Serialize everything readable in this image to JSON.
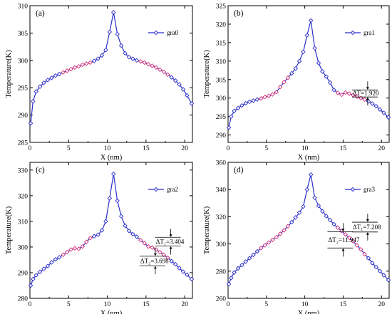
{
  "chart_data": [
    {
      "type": "line",
      "panel_label": "(a)",
      "xlabel": "X (nm)",
      "ylabel": "Temperature(K)",
      "xlim": [
        0,
        21
      ],
      "ylim": [
        285,
        310
      ],
      "xticks": [
        0,
        5,
        10,
        15,
        20
      ],
      "yticks": [
        285,
        290,
        295,
        300,
        305,
        310
      ],
      "legend_position": "top-right",
      "series": [
        {
          "name": "gra0",
          "color": "#2b2fc9",
          "marker": "diamond-open",
          "highlight_color": "#d2307a",
          "x": [
            0.1,
            0.4,
            0.8,
            1.3,
            1.8,
            2.3,
            2.8,
            3.3,
            3.8,
            4.3,
            4.8,
            5.3,
            5.8,
            6.3,
            6.8,
            7.3,
            7.8,
            8.3,
            8.8,
            9.3,
            9.8,
            10.3,
            10.8,
            11.3,
            11.8,
            12.3,
            12.8,
            13.3,
            13.8,
            14.3,
            14.8,
            15.3,
            15.8,
            16.3,
            16.8,
            17.3,
            17.8,
            18.3,
            18.8,
            19.3,
            19.8,
            20.3,
            20.9
          ],
          "y": [
            288.5,
            292.5,
            294.3,
            295.2,
            295.9,
            296.4,
            296.8,
            297.2,
            297.5,
            297.8,
            298.1,
            298.4,
            298.7,
            298.9,
            299.2,
            299.4,
            299.6,
            299.9,
            300.3,
            300.9,
            301.9,
            305.2,
            308.8,
            304.8,
            302.7,
            301.3,
            300.6,
            300.3,
            300.0,
            299.8,
            299.6,
            299.3,
            299.0,
            298.7,
            298.3,
            297.9,
            297.4,
            296.9,
            296.3,
            295.6,
            294.7,
            293.6,
            292.1
          ],
          "highlight_x_ranges": [
            [
              4,
              8
            ],
            [
              14,
              18
            ]
          ]
        }
      ],
      "annotations": []
    },
    {
      "type": "line",
      "panel_label": "(b)",
      "xlabel": "X (nm)",
      "ylabel": "Temperature(K)",
      "xlim": [
        0,
        21
      ],
      "ylim": [
        288,
        325
      ],
      "xticks": [
        0,
        5,
        10,
        15,
        20
      ],
      "yticks": [
        290,
        295,
        300,
        305,
        310,
        315,
        320,
        325
      ],
      "legend_position": "top-right",
      "series": [
        {
          "name": "gra1",
          "color": "#2b2fc9",
          "marker": "diamond-open",
          "highlight_color": "#d2307a",
          "x": [
            0.1,
            0.4,
            0.8,
            1.3,
            1.8,
            2.3,
            2.8,
            3.3,
            3.8,
            4.3,
            4.8,
            5.3,
            5.8,
            6.3,
            6.8,
            7.3,
            7.8,
            8.3,
            8.8,
            9.3,
            9.8,
            10.3,
            10.8,
            11.3,
            11.8,
            12.3,
            12.8,
            13.3,
            13.8,
            14.3,
            14.8,
            15.3,
            15.8,
            16.3,
            16.8,
            17.3,
            17.8,
            18.3,
            18.8,
            19.3,
            19.8,
            20.3,
            20.9
          ],
          "y": [
            292.0,
            295.0,
            296.5,
            297.3,
            298.0,
            298.6,
            299.0,
            299.3,
            299.6,
            299.9,
            300.3,
            300.6,
            301.0,
            301.6,
            303.0,
            304.3,
            305.5,
            306.7,
            308.0,
            310.0,
            312.5,
            317.0,
            321.0,
            313.5,
            309.5,
            307.2,
            305.8,
            304.2,
            302.2,
            301.4,
            300.9,
            301.5,
            301.2,
            300.8,
            300.4,
            300.0,
            299.6,
            299.1,
            298.5,
            297.8,
            296.9,
            296.0,
            294.8
          ],
          "highlight_x_ranges": [
            [
              4,
              8
            ],
            [
              14,
              18
            ]
          ]
        }
      ],
      "annotations": [
        {
          "text": "ΔT=1.920",
          "x": 18.2,
          "y_top": 302.2,
          "y_bottom": 300.3
        }
      ]
    },
    {
      "type": "line",
      "panel_label": "(c)",
      "xlabel": "X (nm)",
      "ylabel": "Temperature(K)",
      "xlim": [
        0,
        21
      ],
      "ylim": [
        280,
        333
      ],
      "xticks": [
        0,
        5,
        10,
        15,
        20
      ],
      "yticks": [
        280,
        290,
        300,
        310,
        320,
        330
      ],
      "legend_position": "top-right",
      "series": [
        {
          "name": "gra2",
          "color": "#2b2fc9",
          "marker": "diamond-open",
          "highlight_color": "#d2307a",
          "x": [
            0.1,
            0.4,
            0.8,
            1.3,
            1.8,
            2.3,
            2.8,
            3.3,
            3.8,
            4.3,
            4.8,
            5.3,
            5.8,
            6.3,
            6.8,
            7.3,
            7.8,
            8.3,
            8.8,
            9.3,
            9.8,
            10.3,
            10.8,
            11.3,
            11.8,
            12.3,
            12.8,
            13.3,
            13.8,
            14.3,
            14.8,
            15.3,
            15.8,
            16.3,
            16.8,
            17.3,
            17.8,
            18.3,
            18.8,
            19.3,
            19.8,
            20.3,
            20.9
          ],
          "y": [
            285.0,
            287.5,
            289.0,
            290.3,
            291.5,
            292.6,
            294.0,
            295.2,
            296.0,
            297.0,
            298.0,
            299.0,
            299.5,
            299.3,
            300.2,
            302.0,
            303.5,
            304.2,
            304.8,
            306.5,
            310.0,
            319.0,
            328.5,
            318.0,
            312.0,
            308.3,
            306.3,
            305.0,
            304.0,
            302.7,
            301.5,
            300.2,
            299.8,
            299.0,
            298.0,
            297.0,
            295.8,
            294.5,
            293.3,
            291.8,
            290.4,
            289.2,
            287.5
          ],
          "highlight_x_ranges": [
            [
              4,
              8
            ],
            [
              14,
              18
            ]
          ]
        }
      ],
      "annotations": [
        {
          "text": "ΔT₁=3.404",
          "x": 18.2,
          "y_top": 303.8,
          "y_bottom": 300.4
        },
        {
          "text": "ΔT₂=3.698",
          "x": 16.2,
          "y_top": 296.4,
          "y_bottom": 292.7
        }
      ]
    },
    {
      "type": "line",
      "panel_label": "(d)",
      "xlabel": "X (nm)",
      "ylabel": "Temperature(K)",
      "xlim": [
        0,
        21
      ],
      "ylim": [
        260,
        360
      ],
      "xticks": [
        0,
        5,
        10,
        15,
        20
      ],
      "yticks": [
        260,
        280,
        300,
        320,
        340,
        360
      ],
      "legend_position": "top-right",
      "series": [
        {
          "name": "gra3",
          "color": "#2b2fc9",
          "marker": "diamond-open",
          "highlight_color": "#d2307a",
          "x": [
            0.1,
            0.4,
            0.8,
            1.3,
            1.8,
            2.3,
            2.8,
            3.3,
            3.8,
            4.3,
            4.8,
            5.3,
            5.8,
            6.3,
            6.8,
            7.3,
            7.8,
            8.3,
            8.8,
            9.3,
            9.8,
            10.3,
            10.8,
            11.3,
            11.8,
            12.3,
            12.8,
            13.3,
            13.8,
            14.3,
            14.8,
            15.3,
            15.8,
            16.3,
            16.8,
            17.3,
            17.8,
            18.3,
            18.8,
            19.3,
            19.8,
            20.3,
            20.9
          ],
          "y": [
            270.5,
            275.0,
            279.0,
            282.0,
            284.5,
            287.0,
            289.5,
            292.0,
            294.5,
            297.0,
            299.0,
            301.0,
            303.0,
            305.0,
            307.5,
            310.0,
            313.0,
            316.0,
            319.5,
            323.0,
            327.5,
            340.0,
            351.0,
            334.0,
            328.0,
            324.0,
            320.5,
            317.5,
            314.5,
            312.0,
            309.5,
            307.0,
            304.5,
            302.0,
            299.0,
            296.0,
            292.5,
            289.5,
            286.0,
            283.0,
            280.0,
            277.0,
            273.5
          ],
          "highlight_x_ranges": [
            [
              4,
              8
            ],
            [
              14,
              18
            ]
          ]
        }
      ],
      "annotations": [
        {
          "text": "ΔT₁=7.208",
          "x": 18.2,
          "y_top": 316.0,
          "y_bottom": 308.8
        },
        {
          "text": "ΔT₂=11.947",
          "x": 15.0,
          "y_top": 309.0,
          "y_bottom": 297.0
        }
      ]
    }
  ]
}
